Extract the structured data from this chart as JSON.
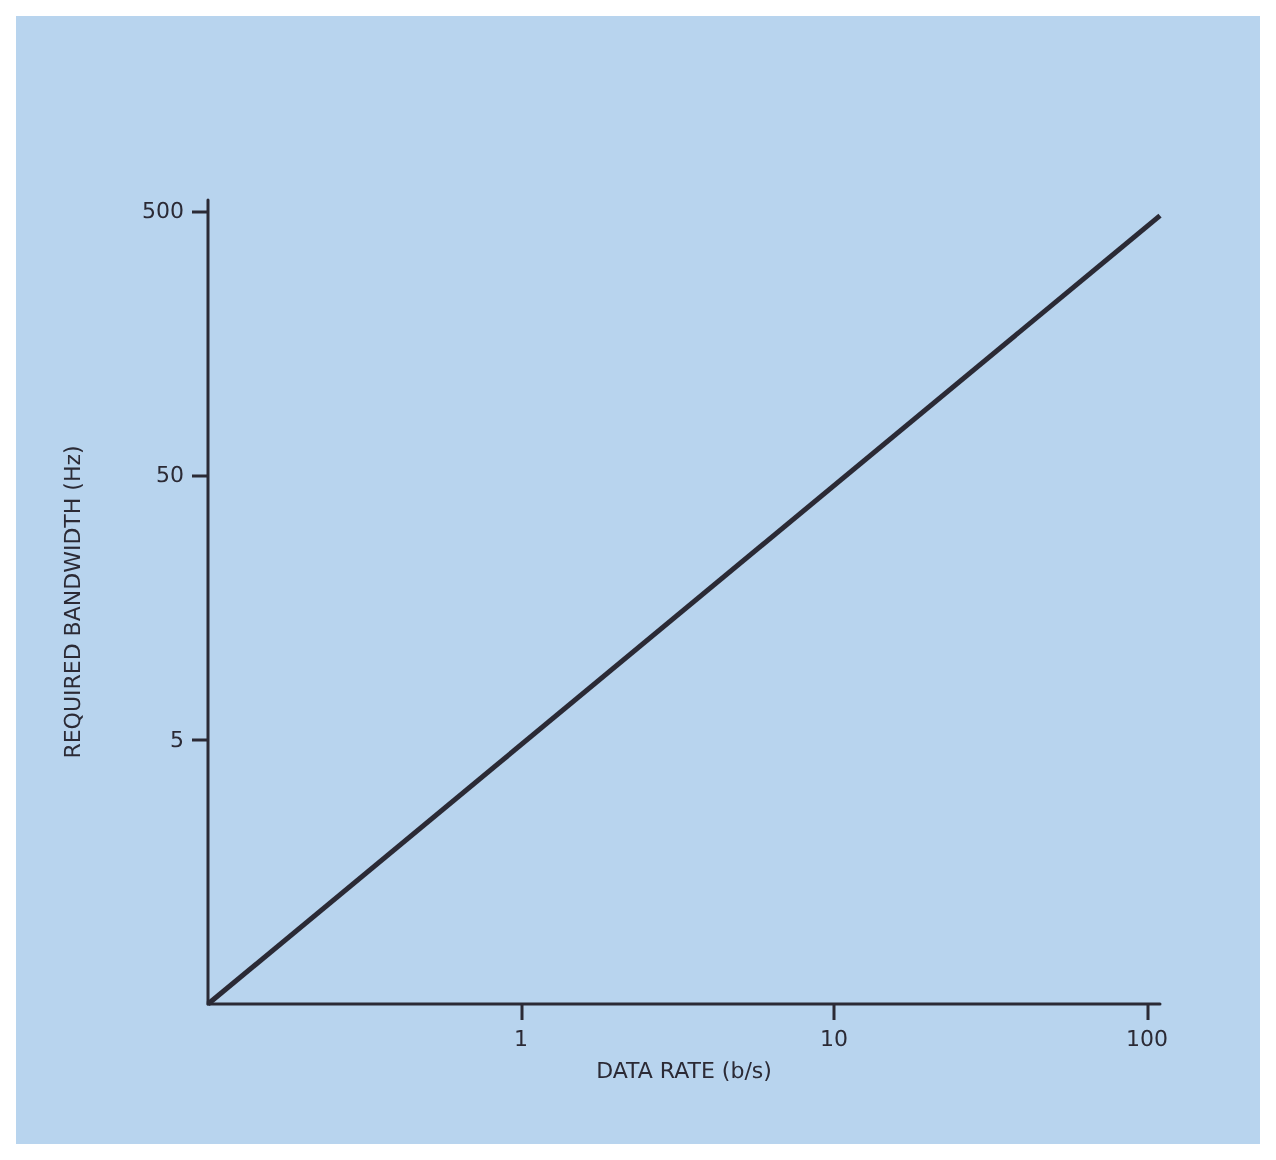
{
  "chart_data": {
    "type": "line",
    "xlabel": "DATA RATE (b/s)",
    "ylabel": "REQUIRED BANDWIDTH (Hz)",
    "log": "xy",
    "x": [
      0.1,
      110
    ],
    "series": [
      {
        "color": "#2b2a35",
        "values": [
          0.5,
          480
        ]
      }
    ],
    "xlim": [
      0.1,
      110
    ],
    "ylim": [
      0.5,
      550
    ],
    "xticks": [
      1,
      10,
      100
    ],
    "yticks": [
      5,
      50,
      500
    ],
    "grid": false,
    "marker": "none",
    "line_style": "solid"
  }
}
